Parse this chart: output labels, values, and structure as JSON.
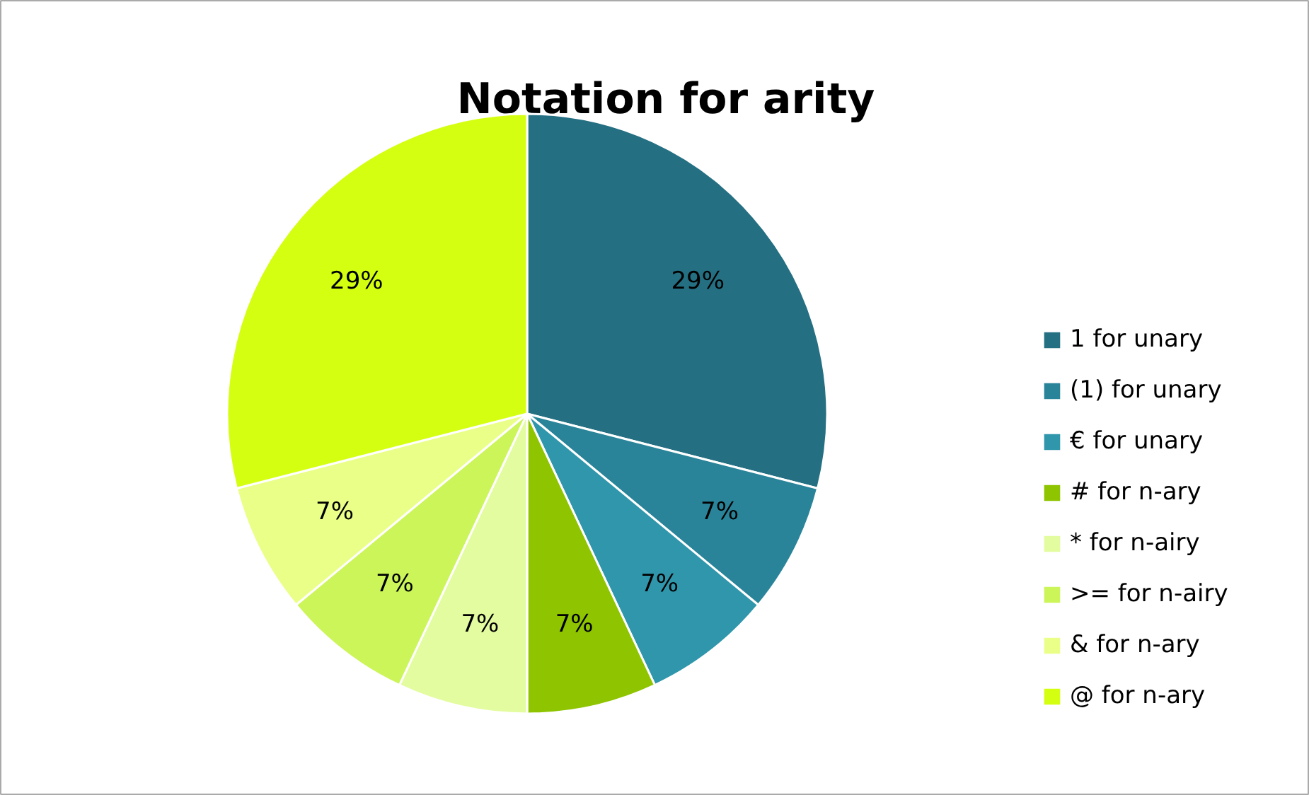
{
  "chart_data": {
    "type": "pie",
    "title": "Notation for arity",
    "categories": [
      "1 for unary",
      "(1) for unary",
      "€ for unary",
      "# for n-ary",
      "* for n-airy",
      ">= for n-airy",
      "& for n-ary",
      "@ for n-ary"
    ],
    "values": [
      29,
      7,
      7,
      7,
      7,
      7,
      7,
      29
    ],
    "value_labels": [
      "29%",
      "7%",
      "7%",
      "7%",
      "7%",
      "7%",
      "7%",
      "29%"
    ],
    "colors": [
      "#246f82",
      "#2a8499",
      "#3096ab",
      "#8ec400",
      "#e4fca0",
      "#ccf55a",
      "#eaff88",
      "#d4ff10"
    ],
    "legend": "right"
  }
}
